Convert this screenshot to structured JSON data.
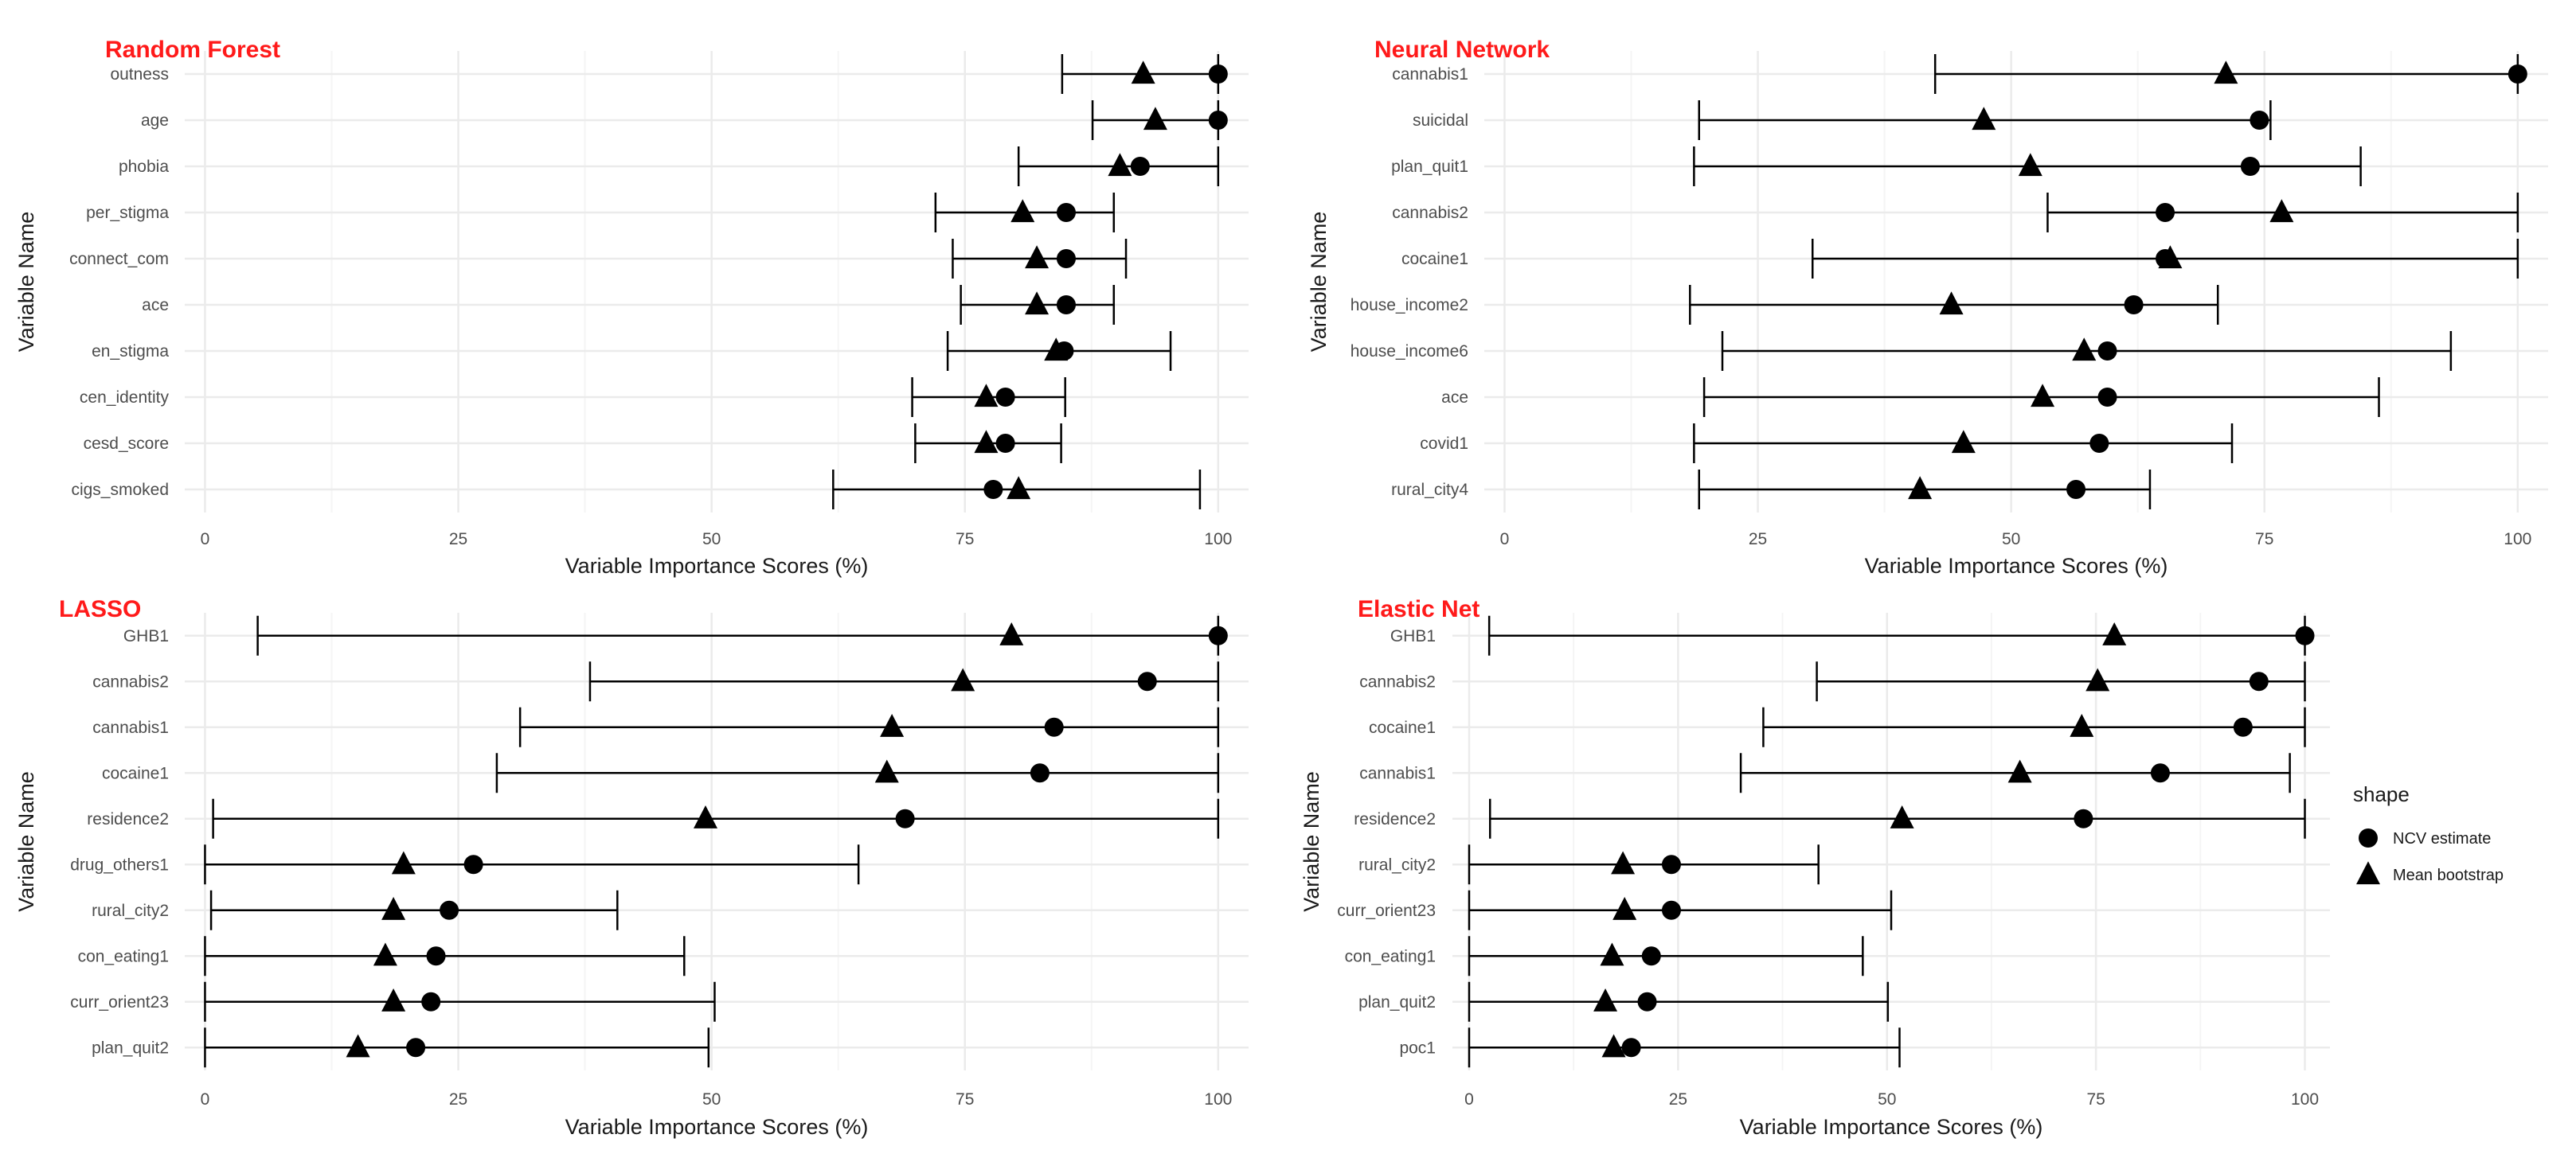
{
  "colors": {
    "panel_title": "#ff1a1a",
    "grid_major": "#ebebeb",
    "grid_minor": "#f5f5f5",
    "tick_label": "#4d4d4d",
    "axis_title": "#1a1a1a",
    "marks": "#000000"
  },
  "legend": {
    "title": "shape",
    "items": [
      {
        "label": "NCV estimate",
        "shape": "circle"
      },
      {
        "label": "Mean bootstrap",
        "shape": "triangle"
      }
    ],
    "placement": "right"
  },
  "chart_data": [
    {
      "type": "scatter",
      "title": "Random Forest",
      "xlabel": "Variable Importance Scores (%)",
      "ylabel": "Variable Name",
      "xlim": [
        -2,
        103
      ],
      "xticks": [
        0,
        25,
        50,
        75,
        100
      ],
      "grid": true,
      "variables": [
        "outness",
        "age",
        "phobia",
        "per_stigma",
        "connect_com",
        "ace",
        "en_stigma",
        "cen_identity",
        "cesd_score",
        "cigs_smoked"
      ],
      "ncv_estimate": [
        100,
        100,
        92.3,
        85,
        85,
        85,
        84.8,
        79,
        79,
        77.8
      ],
      "mean_bootstrap": [
        92.6,
        93.8,
        90.3,
        80.7,
        82.1,
        82.1,
        84,
        77.1,
        77.1,
        80.3
      ],
      "ci_low": [
        84.6,
        87.6,
        80.3,
        72.1,
        73.8,
        74.6,
        73.3,
        69.8,
        70.1,
        62
      ],
      "ci_high": [
        100,
        100,
        100,
        89.7,
        90.9,
        89.7,
        95.3,
        84.9,
        84.5,
        98.2
      ]
    },
    {
      "type": "scatter",
      "title": "Neural Network",
      "xlabel": "Variable Importance Scores (%)",
      "ylabel": "Variable Name",
      "xlim": [
        -2,
        103
      ],
      "xticks": [
        0,
        25,
        50,
        75,
        100
      ],
      "grid": true,
      "variables": [
        "cannabis1",
        "suicidal",
        "plan_quit1",
        "cannabis2",
        "cocaine1",
        "house_income2",
        "house_income6",
        "ace",
        "covid1",
        "rural_city4"
      ],
      "ncv_estimate": [
        100,
        74.5,
        73.6,
        65.2,
        65.2,
        62.1,
        59.5,
        59.5,
        58.7,
        56.4
      ],
      "mean_bootstrap": [
        71.2,
        47.3,
        51.9,
        76.7,
        65.7,
        44.1,
        57.2,
        53.1,
        45.3,
        41
      ],
      "ci_low": [
        42.5,
        19.2,
        18.7,
        53.6,
        30.4,
        18.3,
        21.5,
        19.7,
        18.7,
        19.2
      ],
      "ci_high": [
        100,
        75.6,
        84.5,
        100,
        100,
        70.4,
        93.4,
        86.3,
        71.8,
        63.7
      ]
    },
    {
      "type": "scatter",
      "title": "LASSO",
      "xlabel": "Variable Importance Scores (%)",
      "ylabel": "Variable Name",
      "xlim": [
        -2,
        103
      ],
      "xticks": [
        0,
        25,
        50,
        75,
        100
      ],
      "grid": true,
      "variables": [
        "GHB1",
        "cannabis2",
        "cannabis1",
        "cocaine1",
        "residence2",
        "drug_others1",
        "rural_city2",
        "con_eating1",
        "curr_orient23",
        "plan_quit2"
      ],
      "ncv_estimate": [
        100,
        93,
        83.8,
        82.4,
        69.1,
        26.5,
        24.1,
        22.8,
        22.3,
        20.8
      ],
      "mean_bootstrap": [
        79.6,
        74.8,
        67.8,
        67.3,
        49.4,
        19.6,
        18.6,
        17.8,
        18.6,
        15.1
      ],
      "ci_low": [
        5.2,
        38,
        31.1,
        28.8,
        0.8,
        0,
        0.6,
        0,
        0,
        0
      ],
      "ci_high": [
        100,
        100,
        100,
        100,
        100,
        64.5,
        40.7,
        47.3,
        50.3,
        49.7
      ]
    },
    {
      "type": "scatter",
      "title": "Elastic Net",
      "xlabel": "Variable Importance Scores (%)",
      "ylabel": "Variable Name",
      "xlim": [
        -2,
        103
      ],
      "xticks": [
        0,
        25,
        50,
        75,
        100
      ],
      "grid": true,
      "variables": [
        "GHB1",
        "cannabis2",
        "cocaine1",
        "cannabis1",
        "residence2",
        "rural_city2",
        "curr_orient23",
        "con_eating1",
        "plan_quit2",
        "poc1"
      ],
      "ncv_estimate": [
        100,
        94.5,
        92.6,
        82.7,
        73.5,
        24.2,
        24.2,
        21.8,
        21.3,
        19.4
      ],
      "mean_bootstrap": [
        77.2,
        75.2,
        73.3,
        65.9,
        51.8,
        18.4,
        18.6,
        17.1,
        16.3,
        17.3
      ],
      "ci_low": [
        2.4,
        41.6,
        35.2,
        32.5,
        2.5,
        0,
        0,
        0,
        0,
        0
      ],
      "ci_high": [
        100,
        100,
        100,
        98.2,
        100,
        41.8,
        50.5,
        47.1,
        50.1,
        51.5
      ]
    }
  ]
}
